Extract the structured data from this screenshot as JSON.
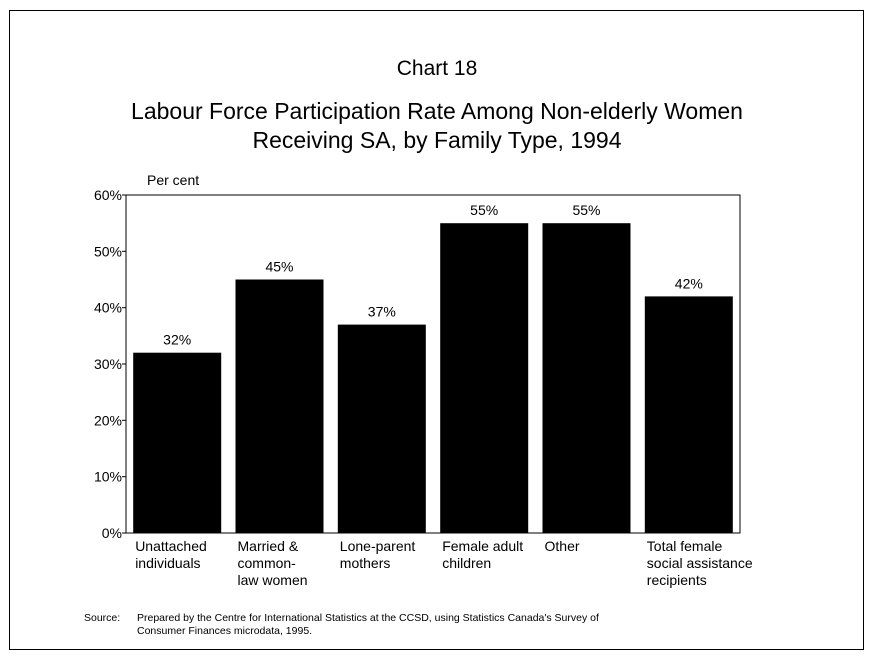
{
  "chart_data": {
    "type": "bar",
    "chart_number": "Chart 18",
    "title_lines": [
      "Labour Force Participation Rate Among Non-elderly Women",
      "Receiving SA, by Family Type, 1994"
    ],
    "ylabel": "Per cent",
    "ylim": [
      0,
      60
    ],
    "yticks": [
      0,
      10,
      20,
      30,
      40,
      50,
      60
    ],
    "ytick_labels": [
      "0%",
      "10%",
      "20%",
      "30%",
      "40%",
      "50%",
      "60%"
    ],
    "grid": false,
    "categories": [
      [
        "Unattached",
        "individuals"
      ],
      [
        "Married &",
        "common-",
        "law women"
      ],
      [
        "Lone-parent",
        "mothers"
      ],
      [
        "Female adult",
        "children"
      ],
      [
        "Other"
      ],
      [
        "Total female",
        "social assistance",
        "recipients"
      ]
    ],
    "values": [
      32,
      45,
      37,
      55,
      55,
      42
    ],
    "value_labels": [
      "32%",
      "45%",
      "37%",
      "55%",
      "55%",
      "42%"
    ],
    "bar_color": "#000000"
  },
  "source": {
    "label": "Source:",
    "lines": [
      "Prepared by the Centre for International Statistics at the CCSD, using Statistics Canada's Survey of",
      "Consumer Finances microdata, 1995."
    ]
  }
}
